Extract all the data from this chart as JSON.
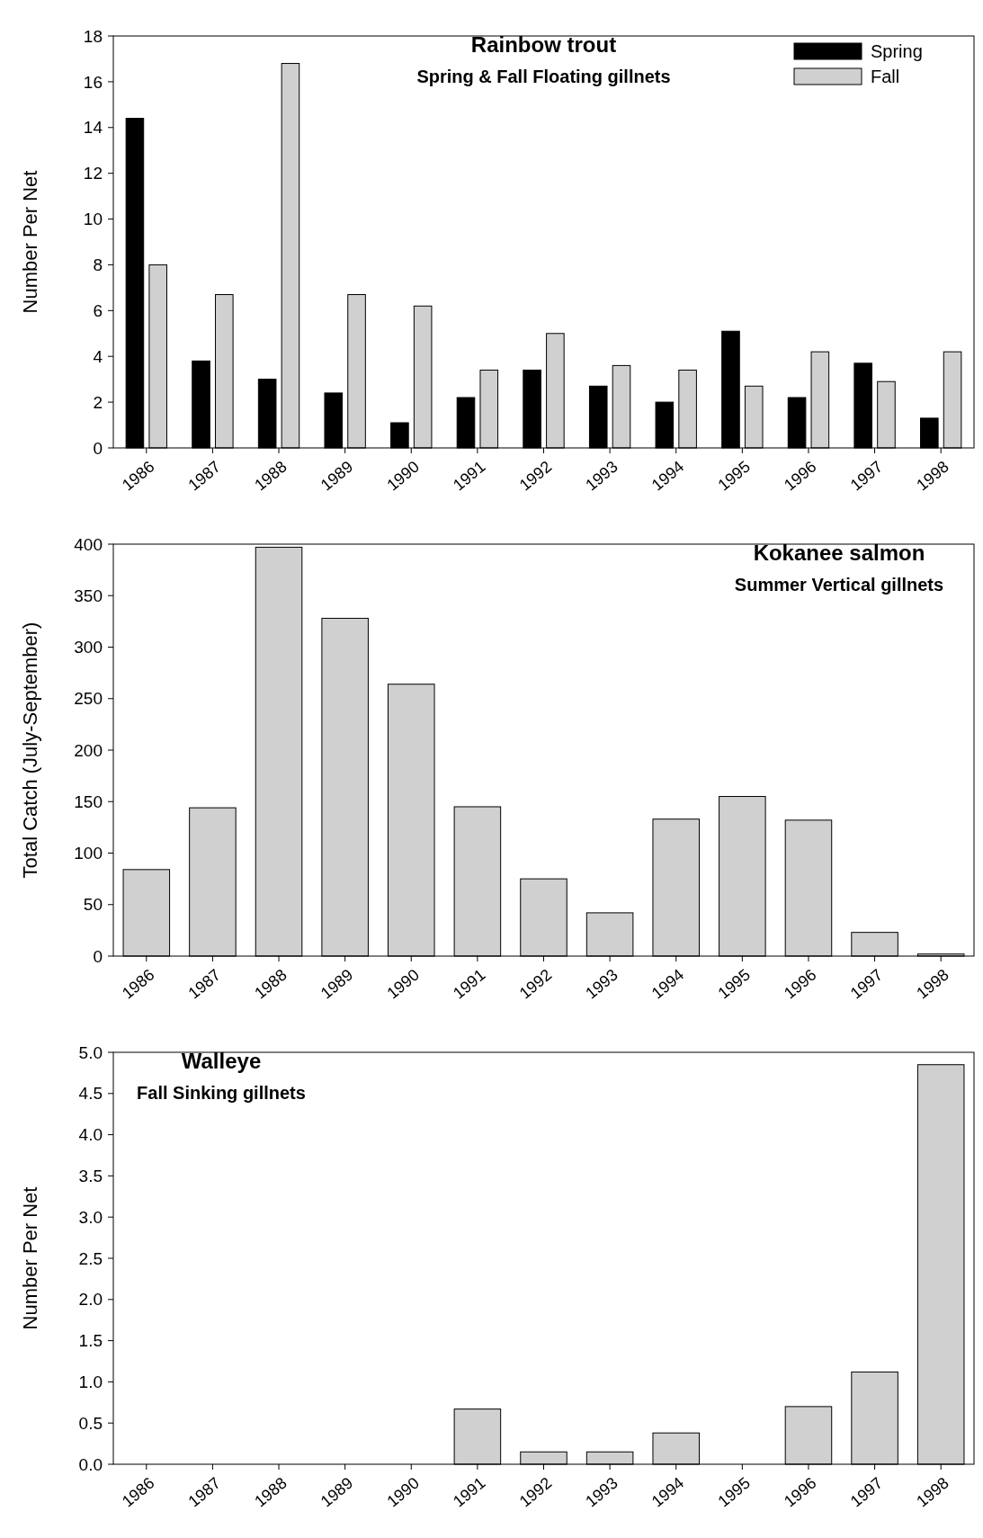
{
  "chart_data": [
    {
      "type": "bar",
      "title": "Rainbow trout",
      "subtitle": "Spring & Fall Floating gillnets",
      "ylabel": "Number Per Net",
      "categories": [
        "1986",
        "1987",
        "1988",
        "1989",
        "1990",
        "1991",
        "1992",
        "1993",
        "1994",
        "1995",
        "1996",
        "1997",
        "1998"
      ],
      "series": [
        {
          "name": "Spring",
          "color": "#000000",
          "values": [
            14.4,
            3.8,
            3.0,
            2.4,
            1.1,
            2.2,
            3.4,
            2.7,
            2.0,
            5.1,
            2.2,
            3.7,
            1.3
          ]
        },
        {
          "name": "Fall",
          "color": "#d0d0d0",
          "values": [
            8.0,
            6.7,
            16.8,
            6.7,
            6.2,
            3.4,
            5.0,
            3.6,
            3.4,
            2.7,
            4.2,
            2.9,
            4.2
          ]
        }
      ],
      "ylim": [
        0,
        18
      ],
      "yticks": [
        0,
        2,
        4,
        6,
        8,
        10,
        12,
        14,
        16,
        18
      ],
      "legend": "top right"
    },
    {
      "type": "bar",
      "title": "Kokanee salmon",
      "subtitle": "Summer Vertical gillnets",
      "ylabel": "Total Catch (July-September)",
      "categories": [
        "1986",
        "1987",
        "1988",
        "1989",
        "1990",
        "1991",
        "1992",
        "1993",
        "1994",
        "1995",
        "1996",
        "1997",
        "1998"
      ],
      "series": [
        {
          "color": "#d0d0d0",
          "values": [
            84,
            144,
            397,
            328,
            264,
            145,
            75,
            42,
            133,
            155,
            132,
            23,
            2
          ]
        }
      ],
      "ylim": [
        0,
        400
      ],
      "yticks": [
        0,
        50,
        100,
        150,
        200,
        250,
        300,
        350,
        400
      ]
    },
    {
      "type": "bar",
      "title": "Walleye",
      "subtitle": "Fall Sinking gillnets",
      "ylabel": "Number Per Net",
      "categories": [
        "1986",
        "1987",
        "1988",
        "1989",
        "1990",
        "1991",
        "1992",
        "1993",
        "1994",
        "1995",
        "1996",
        "1997",
        "1998"
      ],
      "series": [
        {
          "color": "#d0d0d0",
          "values": [
            0,
            0,
            0,
            0,
            0,
            0.67,
            0.15,
            0.15,
            0.38,
            0,
            0.7,
            1.12,
            4.85
          ]
        }
      ],
      "ylim": [
        0,
        5
      ],
      "yticks": [
        {
          "value": 0,
          "label": "0.0"
        },
        {
          "value": 0.5,
          "label": "0.5"
        },
        {
          "value": 1,
          "label": "1.0"
        },
        {
          "value": 1.5,
          "label": "1.5"
        },
        {
          "value": 2,
          "label": "2.0"
        },
        {
          "value": 2.5,
          "label": "2.5"
        },
        {
          "value": 3,
          "label": "3.0"
        },
        {
          "value": 3.5,
          "label": "3.5"
        },
        {
          "value": 4,
          "label": "4.0"
        },
        {
          "value": 4.5,
          "label": "4.5"
        },
        {
          "value": 5,
          "label": "5.0"
        }
      ]
    }
  ]
}
